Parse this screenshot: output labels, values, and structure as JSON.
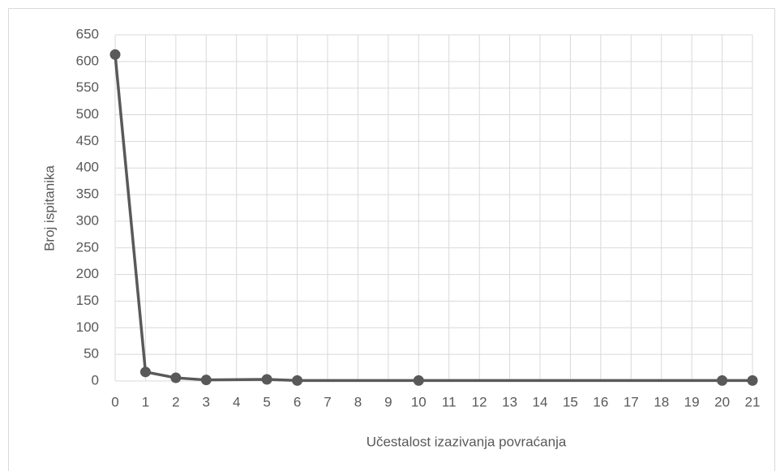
{
  "chart_data": {
    "type": "line",
    "x_label": "Učestalost izazivanja povraćanja",
    "y_label": "Broj ispitanika",
    "x": [
      0,
      1,
      2,
      3,
      5,
      6,
      10,
      20,
      21
    ],
    "series": [
      {
        "name": "Broj ispitanika",
        "color": "#595959",
        "values": [
          613,
          17,
          6,
          2,
          3,
          1,
          1,
          1,
          1
        ]
      }
    ],
    "xlim": [
      0,
      21
    ],
    "xticks": [
      0,
      1,
      2,
      3,
      4,
      5,
      6,
      7,
      8,
      9,
      10,
      11,
      12,
      13,
      14,
      15,
      16,
      17,
      18,
      19,
      20,
      21
    ],
    "ylim": [
      0,
      650
    ],
    "yticks": [
      0,
      50,
      100,
      150,
      200,
      250,
      300,
      350,
      400,
      450,
      500,
      550,
      600,
      650
    ],
    "grid": true
  }
}
